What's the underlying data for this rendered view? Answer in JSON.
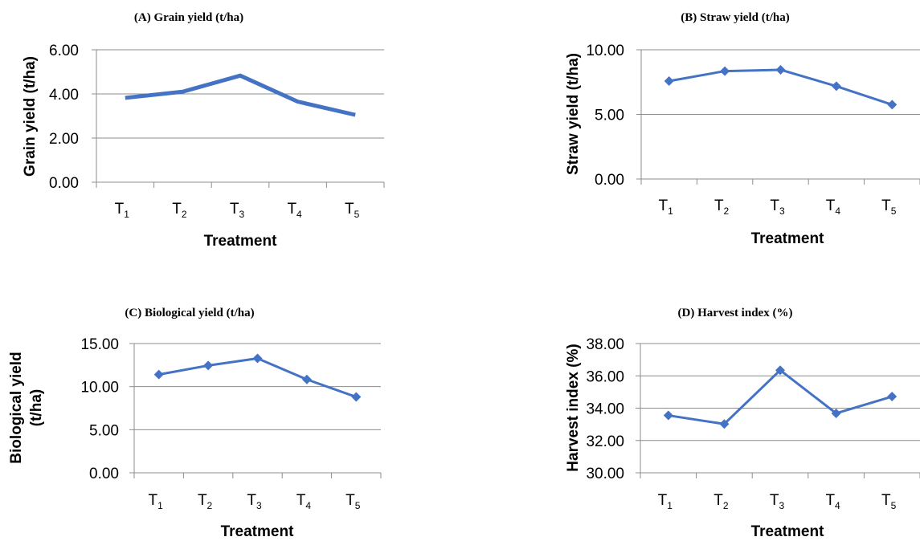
{
  "colors": {
    "series": "#4472c4",
    "grid": "#8c8c8c",
    "text": "#000000"
  },
  "chart_data": [
    {
      "type": "line",
      "title": "(A) Grain yield (t/ha)",
      "xlabel": "Treatment",
      "ylabel": [
        "Grain yield (t/ha)"
      ],
      "categories": [
        {
          "base": "T",
          "sub": "1"
        },
        {
          "base": "T",
          "sub": "2"
        },
        {
          "base": "T",
          "sub": "3"
        },
        {
          "base": "T",
          "sub": "4"
        },
        {
          "base": "T",
          "sub": "5"
        }
      ],
      "ylim": [
        0,
        6
      ],
      "yticks": [
        "0.00",
        "2.00",
        "4.00",
        "6.00"
      ],
      "ytick_values": [
        0,
        2,
        4,
        6
      ],
      "markers": false,
      "grid": true,
      "series": [
        {
          "values": [
            3.82,
            4.1,
            4.83,
            3.65,
            3.05
          ]
        }
      ]
    },
    {
      "type": "line",
      "title": "(B) Straw yield (t/ha)",
      "xlabel": "Treatment",
      "ylabel": [
        "Straw yield (t/ha)"
      ],
      "categories": [
        {
          "base": "T",
          "sub": "1"
        },
        {
          "base": "T",
          "sub": "2"
        },
        {
          "base": "T",
          "sub": "3"
        },
        {
          "base": "T",
          "sub": "4"
        },
        {
          "base": "T",
          "sub": "5"
        }
      ],
      "ylim": [
        0,
        10
      ],
      "yticks": [
        "0.00",
        "5.00",
        "10.00"
      ],
      "ytick_values": [
        0,
        5,
        10
      ],
      "markers": true,
      "grid": true,
      "series": [
        {
          "values": [
            7.58,
            8.35,
            8.45,
            7.18,
            5.75
          ]
        }
      ]
    },
    {
      "type": "line",
      "title": "(C) Biological yield (t/ha)",
      "xlabel": "Treatment",
      "ylabel": [
        "Biological yield",
        "(t/ha)"
      ],
      "categories": [
        {
          "base": "T",
          "sub": "1"
        },
        {
          "base": "T",
          "sub": "2"
        },
        {
          "base": "T",
          "sub": "3"
        },
        {
          "base": "T",
          "sub": "4"
        },
        {
          "base": "T",
          "sub": "5"
        }
      ],
      "ylim": [
        0,
        15
      ],
      "yticks": [
        "0.00",
        "5.00",
        "10.00",
        "15.00"
      ],
      "ytick_values": [
        0,
        5,
        10,
        15
      ],
      "markers": true,
      "grid": true,
      "series": [
        {
          "values": [
            11.4,
            12.45,
            13.28,
            10.83,
            8.8
          ]
        }
      ]
    },
    {
      "type": "line",
      "title": "(D) Harvest index (%)",
      "xlabel": "Treatment",
      "ylabel": [
        "Harvest index (%)"
      ],
      "categories": [
        {
          "base": "T",
          "sub": "1"
        },
        {
          "base": "T",
          "sub": "2"
        },
        {
          "base": "T",
          "sub": "3"
        },
        {
          "base": "T",
          "sub": "4"
        },
        {
          "base": "T",
          "sub": "5"
        }
      ],
      "ylim": [
        30,
        38
      ],
      "yticks": [
        "30.00",
        "32.00",
        "34.00",
        "36.00",
        "38.00"
      ],
      "ytick_values": [
        30,
        32,
        34,
        36,
        38
      ],
      "markers": true,
      "grid": true,
      "series": [
        {
          "values": [
            33.55,
            33.02,
            36.35,
            33.68,
            34.72
          ]
        }
      ]
    }
  ]
}
